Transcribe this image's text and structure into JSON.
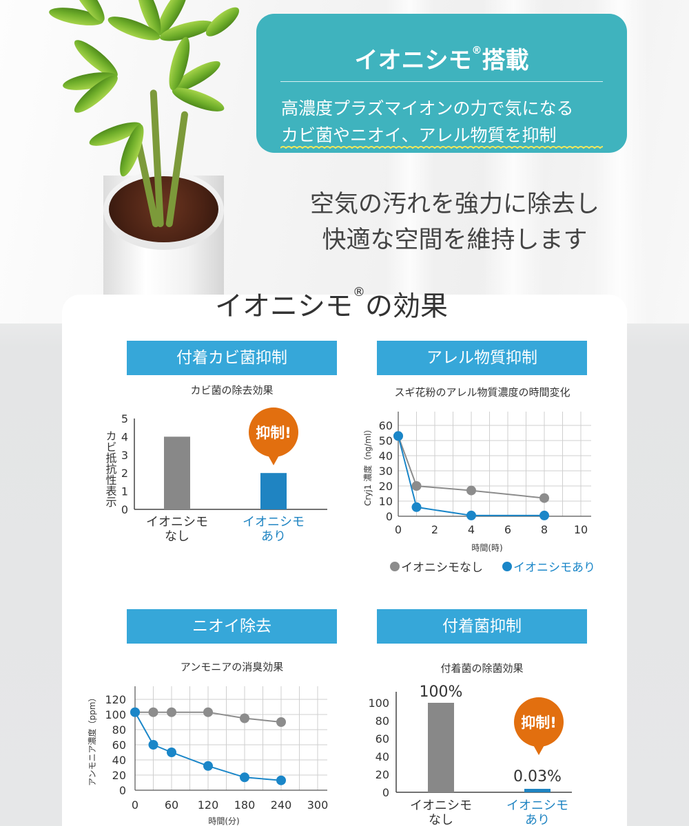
{
  "header": {
    "title": "イオニシモ",
    "title_suffix": "搭載",
    "reg_mark": "®",
    "line1": "高濃度プラズマイオンの力で気になる",
    "line2": "カビ菌やニオイ、アレル物質を抑制"
  },
  "lead": {
    "line1": "空気の汚れを強力に除去し",
    "line2": "快適な空間を維持します"
  },
  "section": {
    "title": "イオニシモ",
    "reg_mark": "®",
    "title_suffix": "の効果"
  },
  "colors": {
    "teal": "#3fb3be",
    "blue": "#36a7d9",
    "gray_bar": "#888888",
    "blue_bar": "#1f84c2",
    "badge": "#e26f0f",
    "gray_line": "#8c8c8c",
    "blue_line": "#1a86c8"
  },
  "cards": [
    {
      "heading": "付着カビ菌抑制",
      "subtitle": "カビ菌の除去効果"
    },
    {
      "heading": "アレル物質抑制",
      "subtitle": "スギ花粉のアレル物質濃度の時間変化"
    },
    {
      "heading": "ニオイ除去",
      "subtitle": "アンモニアの消臭効果"
    },
    {
      "heading": "付着菌抑制",
      "subtitle": "付着菌の除菌効果"
    }
  ],
  "chart_data": [
    {
      "type": "bar",
      "ylabel": "カビ抵抗性表示",
      "ylim": [
        0,
        5
      ],
      "yticks": [
        "0",
        "1",
        "2",
        "3",
        "4",
        "5"
      ],
      "categories": [
        "イオニシモ\nなし",
        "イオニシモ\nあり"
      ],
      "values": [
        4,
        2
      ],
      "badge": "抑制!"
    },
    {
      "type": "line",
      "xlabel": "時間(時)",
      "ylabel": "Cryj1 濃度（ng/ml）",
      "xlim": [
        0,
        10
      ],
      "ylim": [
        0,
        60
      ],
      "xticks": [
        "0",
        "2",
        "4",
        "6",
        "8",
        "10"
      ],
      "yticks": [
        "0",
        "10",
        "20",
        "30",
        "40",
        "50",
        "60"
      ],
      "grid": true,
      "legend": "bottom",
      "series": [
        {
          "name": "イオニシモなし",
          "x": [
            0,
            1,
            4,
            8
          ],
          "y": [
            53,
            20,
            17,
            12
          ]
        },
        {
          "name": "イオニシモあり",
          "x": [
            0,
            1,
            4,
            8
          ],
          "y": [
            53,
            6,
            0.5,
            0.5
          ]
        }
      ]
    },
    {
      "type": "line",
      "xlabel": "時間(分)",
      "ylabel": "アンモニア濃度（ppm）",
      "xlim": [
        0,
        300
      ],
      "ylim": [
        0,
        120
      ],
      "xticks": [
        "0",
        "60",
        "120",
        "180",
        "240",
        "300"
      ],
      "yticks": [
        "0",
        "20",
        "40",
        "60",
        "80",
        "100",
        "120"
      ],
      "grid": true,
      "series": [
        {
          "x": [
            0,
            30,
            60,
            120,
            180,
            240
          ],
          "y": [
            103,
            103,
            103,
            103,
            95,
            90
          ]
        },
        {
          "x": [
            0,
            30,
            60,
            120,
            180,
            240
          ],
          "y": [
            103,
            60,
            50,
            32,
            17,
            13
          ]
        }
      ]
    },
    {
      "type": "bar",
      "ylim": [
        0,
        100
      ],
      "yticks": [
        "0",
        "20",
        "40",
        "60",
        "80",
        "100"
      ],
      "categories": [
        "イオニシモ\nなし",
        "イオニシモ\nあり"
      ],
      "values": [
        100,
        0.03
      ],
      "data_labels": [
        "100%",
        "0.03%"
      ],
      "badge": "抑制!"
    }
  ]
}
